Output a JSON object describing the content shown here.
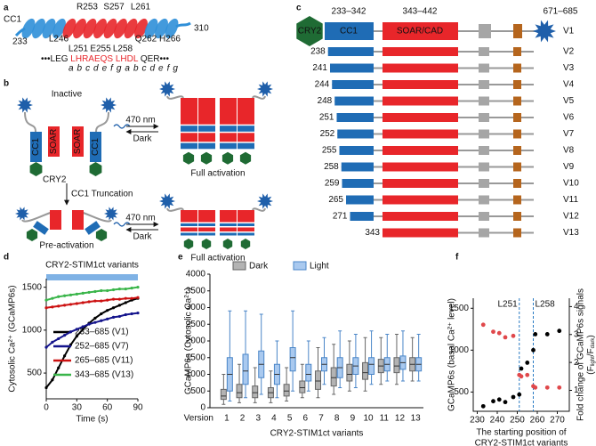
{
  "panel_a": {
    "letter": "a",
    "domain": "CC1",
    "start": "233",
    "end": "310",
    "residues_top": [
      "R253",
      "S257",
      "L261"
    ],
    "residues_bottom": [
      {
        "label": "L246",
        "color": "#111111"
      },
      {
        "label": "L251",
        "color": "#e8262a"
      },
      {
        "label": "E255",
        "color": "#e8262a"
      },
      {
        "label": "L258",
        "color": "#e8262a"
      },
      {
        "label": "Q262",
        "color": "#111111"
      },
      {
        "label": "H266",
        "color": "#111111"
      }
    ],
    "sequence": [
      {
        "text": "•••LEG ",
        "color": "#111111"
      },
      {
        "text": "LHRAEQS",
        "color": "#e8262a"
      },
      {
        "text": " LHDL",
        "color": "#e8262a"
      },
      {
        "text": " QER",
        "color": "#111111"
      },
      {
        "text": "•••",
        "color": "#111111"
      }
    ],
    "heptad": "a b c d e f g a b c d e f g"
  },
  "panel_b": {
    "letter": "b",
    "inactive": "Inactive",
    "cc1": "CC1",
    "soar": "SOAR",
    "cry2": "CRY2",
    "light": "470 nm",
    "dark": "Dark",
    "truncation": "CC1 Truncation",
    "full": "Full activation",
    "pre": "Pre-activation"
  },
  "panel_c": {
    "letter": "c",
    "cry2": "CRY2",
    "cc1": "CC1",
    "cc1_range": "233–342",
    "soar": "SOAR/CAD",
    "soar_range": "343–442",
    "tail_range": "671–685",
    "versions": [
      "V1",
      "V2",
      "V3",
      "V4",
      "V5",
      "V6",
      "V7",
      "V8",
      "V9",
      "V10",
      "V11",
      "V12",
      "V13"
    ],
    "starts": [
      null,
      238,
      241,
      244,
      248,
      251,
      252,
      255,
      258,
      259,
      265,
      271,
      343
    ]
  },
  "chart_data": [
    {
      "type": "line",
      "letter": "d",
      "title": "CRY2-STIM1ct variants",
      "xlabel": "Time (s)",
      "ylabel": "Cytosolic Ca²⁺ (GCaMP6s)",
      "x": [
        0,
        6,
        12,
        18,
        24,
        30,
        36,
        42,
        48,
        54,
        60,
        66,
        72,
        78,
        84,
        90
      ],
      "xlim": [
        0,
        90
      ],
      "xticks": [
        0,
        30,
        60,
        90
      ],
      "ylim": [
        200,
        1600
      ],
      "yticks": [
        500,
        1000,
        1500
      ],
      "series": [
        {
          "name": "233–685 (V1)",
          "color": "#000000",
          "values": [
            330,
            420,
            560,
            700,
            830,
            930,
            1010,
            1080,
            1140,
            1190,
            1230,
            1260,
            1290,
            1320,
            1350,
            1370
          ]
        },
        {
          "name": "252–685 (V7)",
          "color": "#14148c",
          "values": [
            800,
            860,
            900,
            940,
            980,
            1010,
            1040,
            1070,
            1090,
            1110,
            1130,
            1150,
            1160,
            1180,
            1190,
            1200
          ]
        },
        {
          "name": "265–685 (V11)",
          "color": "#cc1111",
          "values": [
            1260,
            1270,
            1280,
            1290,
            1300,
            1310,
            1320,
            1330,
            1340,
            1340,
            1350,
            1360,
            1360,
            1370,
            1370,
            1380
          ]
        },
        {
          "name": "343–685 (V13)",
          "color": "#3ab54a",
          "values": [
            1350,
            1370,
            1390,
            1400,
            1410,
            1420,
            1430,
            1440,
            1450,
            1460,
            1460,
            1470,
            1480,
            1480,
            1490,
            1500
          ]
        }
      ],
      "legend": "lower right"
    },
    {
      "type": "box",
      "letter": "e",
      "xlabel": "CRY2-STIM1ct variants",
      "ylabel": "GCaMP6s (Cytosolic Ca²⁺)",
      "categories_label": "Version",
      "categories": [
        "1",
        "2",
        "3",
        "4",
        "5",
        "6",
        "7",
        "8",
        "9",
        "10",
        "11",
        "12",
        "13"
      ],
      "ylim": [
        0,
        4000
      ],
      "yticks": [
        0,
        500,
        1000,
        1500,
        2000,
        2500,
        3000,
        3500,
        4000
      ],
      "series": [
        {
          "name": "Dark",
          "color": "#b3b3b3",
          "values": [
            [
              100,
              250,
              350,
              550,
              1000
            ],
            [
              150,
              300,
              450,
              700,
              1300
            ],
            [
              150,
              300,
              450,
              650,
              1200
            ],
            [
              150,
              300,
              450,
              600,
              1100
            ],
            [
              200,
              350,
              500,
              700,
              1200
            ],
            [
              300,
              450,
              600,
              800,
              1300
            ],
            [
              300,
              550,
              800,
              1100,
              1800
            ],
            [
              400,
              650,
              900,
              1200,
              1900
            ],
            [
              500,
              800,
              1000,
              1300,
              2000
            ],
            [
              500,
              850,
              1050,
              1350,
              2100
            ],
            [
              700,
              1050,
              1250,
              1450,
              2100
            ],
            [
              700,
              1050,
              1250,
              1500,
              2200
            ],
            [
              800,
              1100,
              1300,
              1500,
              2100
            ]
          ]
        },
        {
          "name": "Light",
          "color": "#a9c9ef",
          "values": [
            [
              200,
              500,
              1000,
              1500,
              2900
            ],
            [
              300,
              700,
              1100,
              1600,
              2900
            ],
            [
              400,
              900,
              1300,
              1700,
              2800
            ],
            [
              300,
              700,
              1000,
              1300,
              2000
            ],
            [
              500,
              1100,
              1500,
              1800,
              2900
            ],
            [
              500,
              800,
              1000,
              1300,
              2000
            ],
            [
              700,
              1100,
              1300,
              1500,
              2100
            ],
            [
              600,
              900,
              1200,
              1500,
              2300
            ],
            [
              600,
              1000,
              1250,
              1500,
              2200
            ],
            [
              700,
              1000,
              1300,
              1500,
              2300
            ],
            [
              800,
              1100,
              1300,
              1500,
              2200
            ],
            [
              800,
              1150,
              1350,
              1550,
              2300
            ],
            [
              800,
              1100,
              1300,
              1500,
              2200
            ]
          ]
        }
      ],
      "legend": "top"
    },
    {
      "type": "scatter",
      "letter": "f",
      "xlabel": [
        "The starting position of",
        "CRY2-STIM1ct variants"
      ],
      "ylabel": "GCaMP6s (basal Ca²⁺ level)",
      "y2label": "Fold change of GCaMP6s signals",
      "y2label_sub": [
        "(F",
        "light",
        "/F",
        "dark",
        ")"
      ],
      "x": [
        233,
        238,
        241,
        244,
        248,
        251,
        252,
        255,
        258,
        259,
        265,
        271
      ],
      "xlim": [
        228,
        276
      ],
      "xticks": [
        230,
        240,
        250,
        260,
        270
      ],
      "ylim": [
        270,
        1620
      ],
      "yticks": [
        500,
        1000,
        1500
      ],
      "y2lim": [
        0.25,
        4.3
      ],
      "y2ticks": [
        1,
        2,
        3,
        4
      ],
      "series": [
        {
          "color": "#000000",
          "values": [
            330,
            390,
            410,
            380,
            440,
            470,
            780,
            850,
            1000,
            1190,
            1190,
            1230
          ]
        },
        {
          "color": "#e0484b",
          "axis": "y2",
          "values": [
            3.35,
            3.1,
            3.05,
            2.9,
            2.95,
            1.55,
            1.5,
            1.55,
            1.15,
            1.1,
            1.1,
            1.1
          ]
        }
      ],
      "annotations": [
        {
          "x": 251,
          "text": "L251"
        },
        {
          "x": 258,
          "text": "L258"
        }
      ],
      "annotation_color": "#2a7bc4"
    }
  ]
}
